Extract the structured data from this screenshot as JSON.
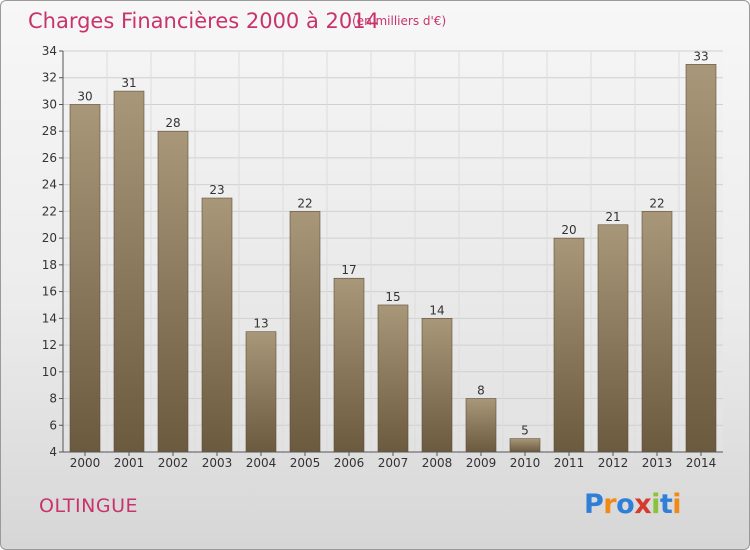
{
  "title": "Charges Financières 2000 à 2014",
  "subtitle": "(en milliers d'€)",
  "commune": "OLTINGUE",
  "logo": {
    "text": "Proxiti",
    "letters": [
      "P",
      "r",
      "o",
      "x",
      "i",
      "t",
      "i"
    ],
    "colors": [
      "#2f7fd6",
      "#f08a16",
      "#2f7fd6",
      "#d63a2f",
      "#8ac23a",
      "#2f7fd6",
      "#f08a16"
    ]
  },
  "colors": {
    "accent": "#c8336b",
    "bar_top": "#a9977a",
    "bar_bottom": "#6b5a3e"
  },
  "chart_data": {
    "type": "bar",
    "title": "Charges Financières 2000 à 2014",
    "subtitle": "(en milliers d'€)",
    "categories": [
      "2000",
      "2001",
      "2002",
      "2003",
      "2004",
      "2005",
      "2006",
      "2007",
      "2008",
      "2009",
      "2010",
      "2011",
      "2012",
      "2013",
      "2014"
    ],
    "values": [
      30,
      31,
      28,
      23,
      13,
      22,
      17,
      15,
      14,
      8,
      5,
      20,
      21,
      22,
      33
    ],
    "ylim": [
      4,
      34
    ],
    "yticks": [
      4,
      6,
      8,
      10,
      12,
      14,
      16,
      18,
      20,
      22,
      24,
      26,
      28,
      30,
      32,
      34
    ],
    "grid": true
  }
}
